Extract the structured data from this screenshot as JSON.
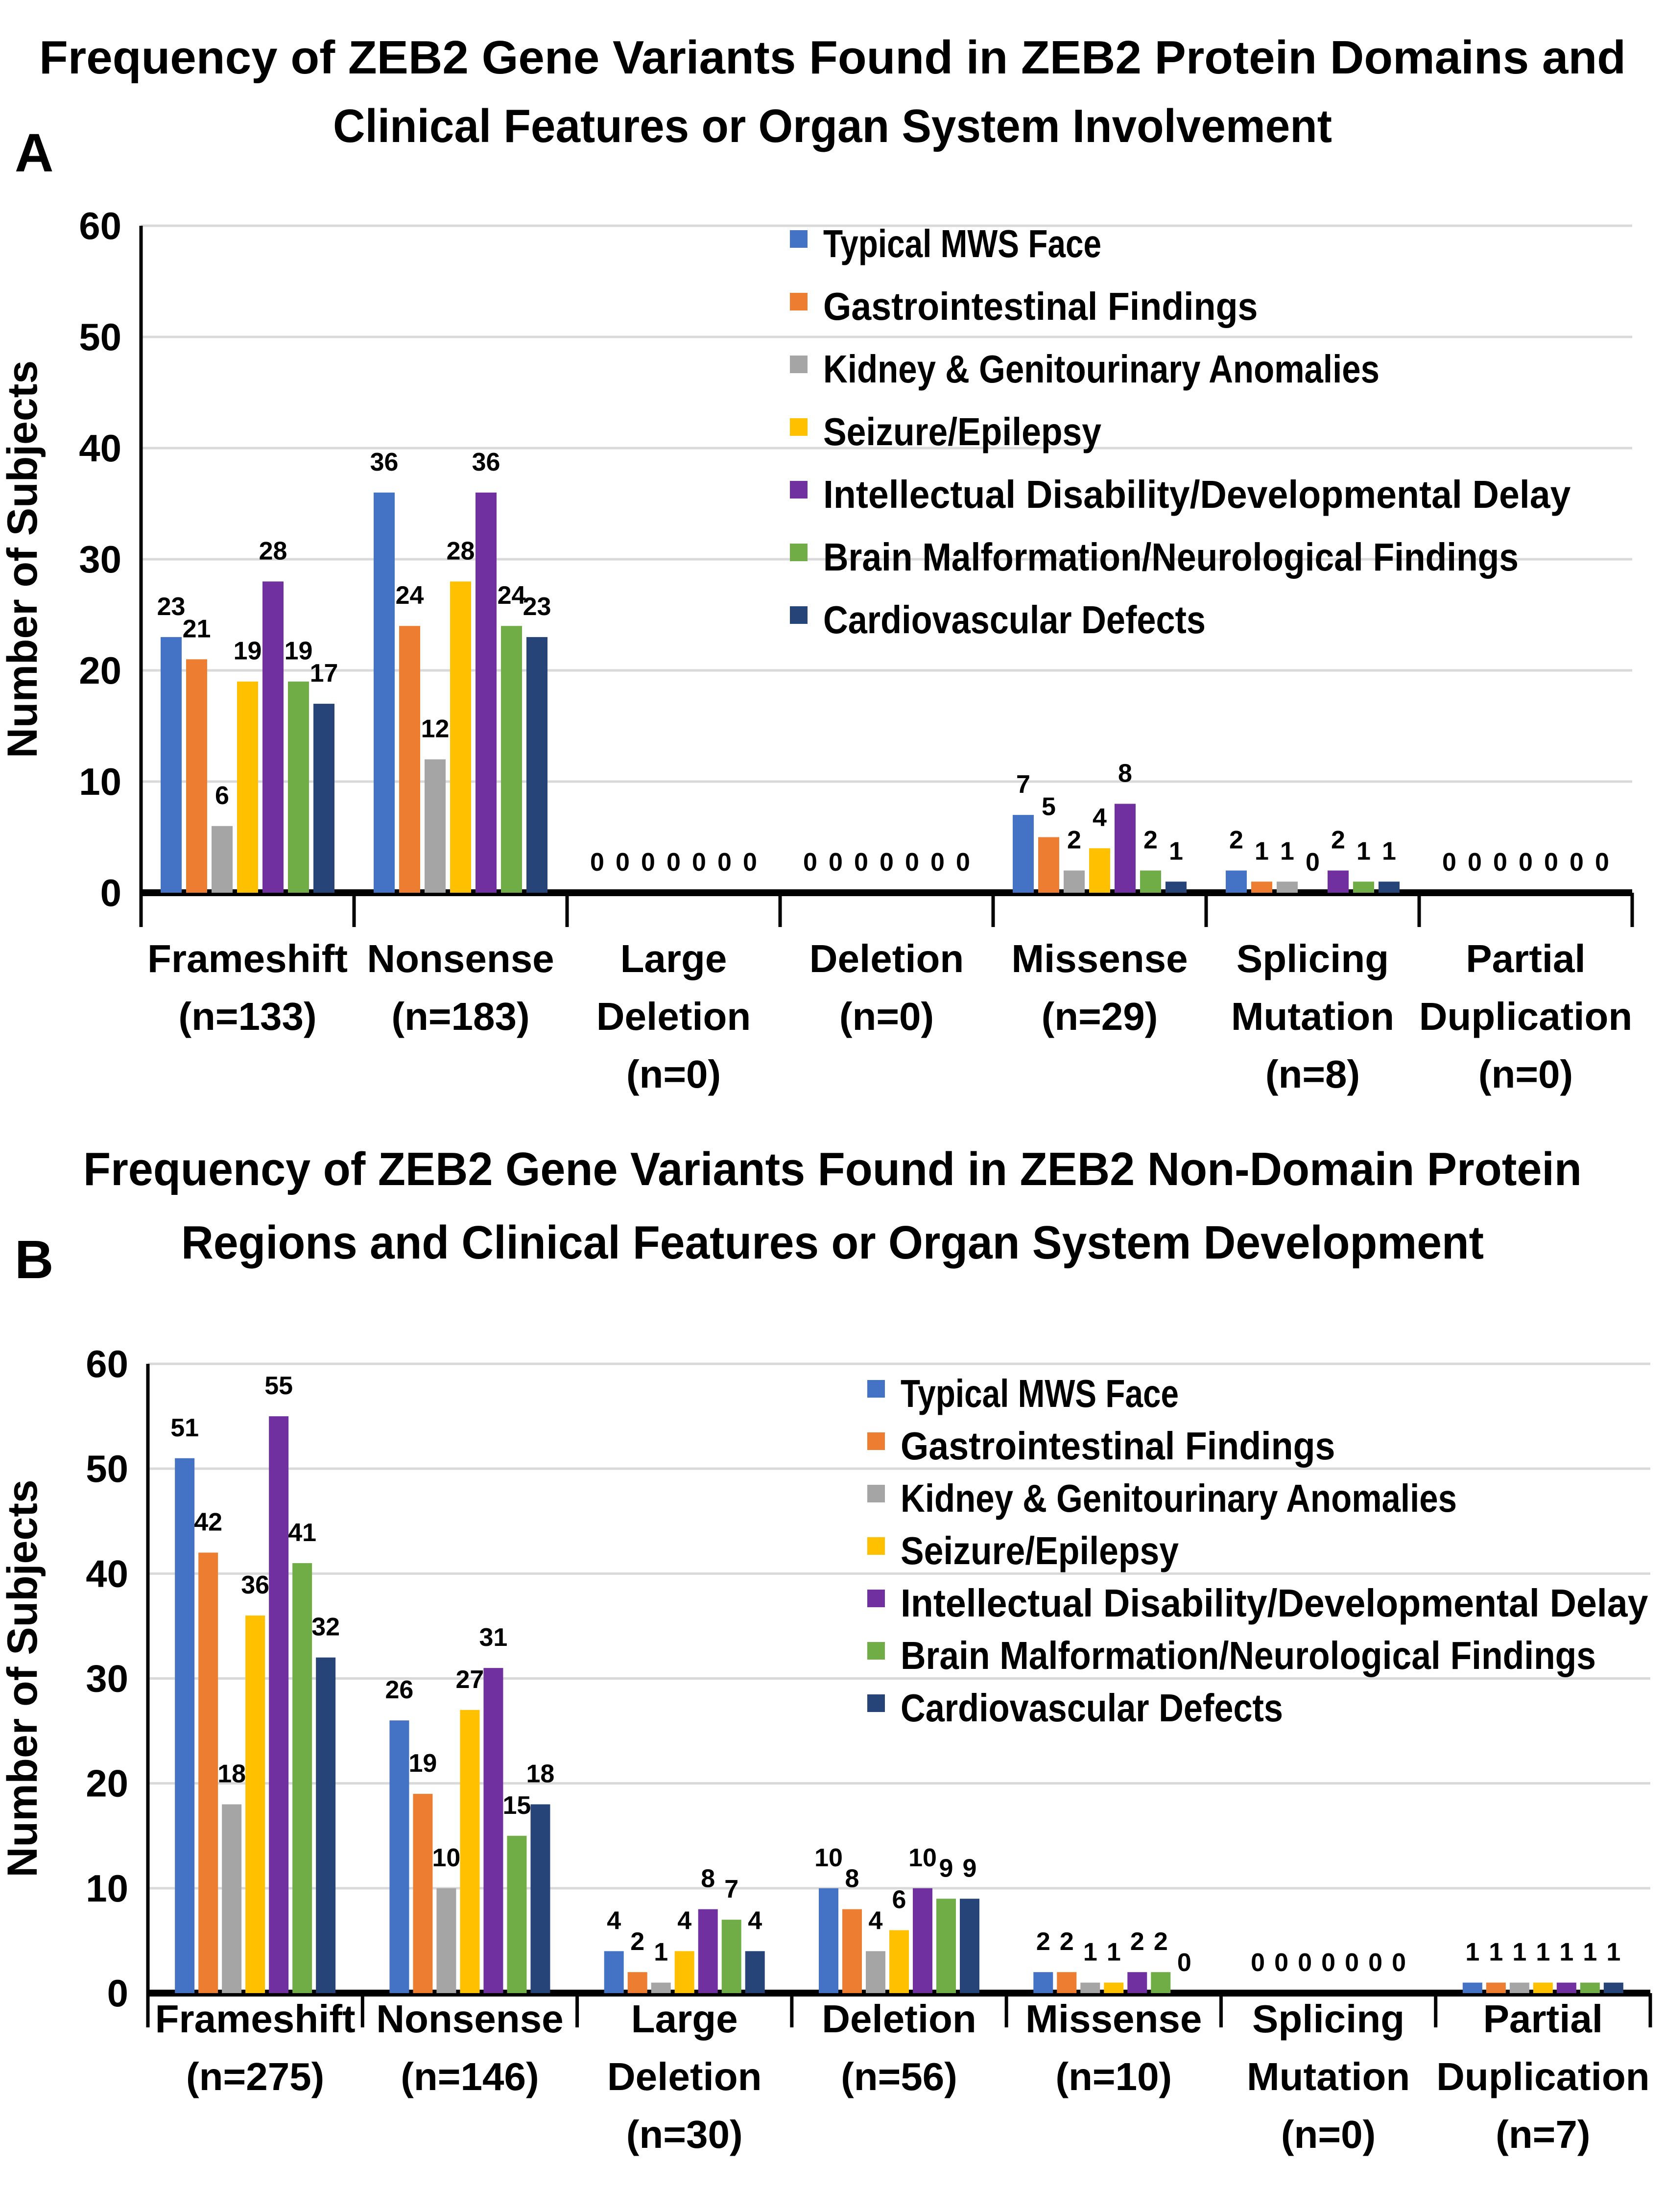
{
  "chart_data": [
    {
      "type": "bar",
      "panel": "A",
      "title": [
        "Frequency of ZEB2 Gene Variants Found in ZEB2 Protein Domains and",
        "Clinical Features or Organ System Involvement"
      ],
      "xlabel": "",
      "ylabel": "Number of Subjects",
      "ylim": [
        0,
        60
      ],
      "yticks": [
        0,
        10,
        20,
        30,
        40,
        50,
        60
      ],
      "grid": true,
      "legend_position": "top-right",
      "categories": [
        [
          "Frameshift",
          "(n=133)"
        ],
        [
          "Nonsense",
          "(n=183)"
        ],
        [
          "Large",
          "Deletion",
          "(n=0)"
        ],
        [
          "Deletion",
          "(n=0)"
        ],
        [
          "Missense",
          "(n=29)"
        ],
        [
          "Splicing",
          "Mutation",
          "(n=8)"
        ],
        [
          "Partial",
          "Duplication",
          "(n=0)"
        ]
      ],
      "series": [
        {
          "name": "Typical MWS Face",
          "color": "#4472C4",
          "values": [
            23,
            36,
            0,
            0,
            7,
            2,
            0
          ]
        },
        {
          "name": "Gastrointestinal Findings",
          "color": "#ED7D31",
          "values": [
            21,
            24,
            0,
            0,
            5,
            1,
            0
          ]
        },
        {
          "name": "Kidney & Genitourinary Anomalies",
          "color": "#A5A5A5",
          "values": [
            6,
            12,
            0,
            0,
            2,
            1,
            0
          ]
        },
        {
          "name": "Seizure/Epilepsy",
          "color": "#FFC000",
          "values": [
            19,
            28,
            0,
            0,
            4,
            0,
            0
          ]
        },
        {
          "name": "Intellectual Disability/Developmental Delay",
          "color": "#7030A0",
          "values": [
            28,
            36,
            0,
            0,
            8,
            2,
            0
          ]
        },
        {
          "name": "Brain Malformation/Neurological Findings",
          "color": "#70AD47",
          "values": [
            19,
            24,
            0,
            0,
            2,
            1,
            0
          ]
        },
        {
          "name": "Cardiovascular Defects",
          "color": "#264478",
          "values": [
            17,
            23,
            0,
            0,
            1,
            1,
            0
          ]
        }
      ]
    },
    {
      "type": "bar",
      "panel": "B",
      "title": [
        "Frequency of ZEB2 Gene Variants Found in ZEB2 Non-Domain Protein",
        "Regions and Clinical Features or  Organ System Development"
      ],
      "xlabel": "",
      "ylabel": "Number of Subjects",
      "ylim": [
        0,
        60
      ],
      "yticks": [
        0,
        10,
        20,
        30,
        40,
        50,
        60
      ],
      "grid": true,
      "legend_position": "top-right",
      "categories": [
        [
          "Frameshift",
          "(n=275)"
        ],
        [
          "Nonsense",
          "(n=146)"
        ],
        [
          "Large",
          "Deletion",
          "(n=30)"
        ],
        [
          "Deletion",
          "(n=56)"
        ],
        [
          "Missense",
          "(n=10)"
        ],
        [
          "Splicing",
          "Mutation",
          "(n=0)"
        ],
        [
          "Partial",
          "Duplication",
          "(n=7)"
        ]
      ],
      "series": [
        {
          "name": "Typical MWS Face",
          "color": "#4472C4",
          "values": [
            51,
            26,
            4,
            10,
            2,
            0,
            1
          ]
        },
        {
          "name": "Gastrointestinal Findings",
          "color": "#ED7D31",
          "values": [
            42,
            19,
            2,
            8,
            2,
            0,
            1
          ]
        },
        {
          "name": "Kidney & Genitourinary Anomalies",
          "color": "#A5A5A5",
          "values": [
            18,
            10,
            1,
            4,
            1,
            0,
            1
          ]
        },
        {
          "name": "Seizure/Epilepsy",
          "color": "#FFC000",
          "values": [
            36,
            27,
            4,
            6,
            1,
            0,
            1
          ]
        },
        {
          "name": "Intellectual Disability/Developmental Delay",
          "color": "#7030A0",
          "values": [
            55,
            31,
            8,
            10,
            2,
            0,
            1
          ]
        },
        {
          "name": "Brain Malformation/Neurological Findings",
          "color": "#70AD47",
          "values": [
            41,
            15,
            7,
            9,
            2,
            0,
            1
          ]
        },
        {
          "name": "Cardiovascular Defects",
          "color": "#264478",
          "values": [
            32,
            18,
            4,
            9,
            0,
            0,
            1
          ]
        }
      ]
    }
  ]
}
